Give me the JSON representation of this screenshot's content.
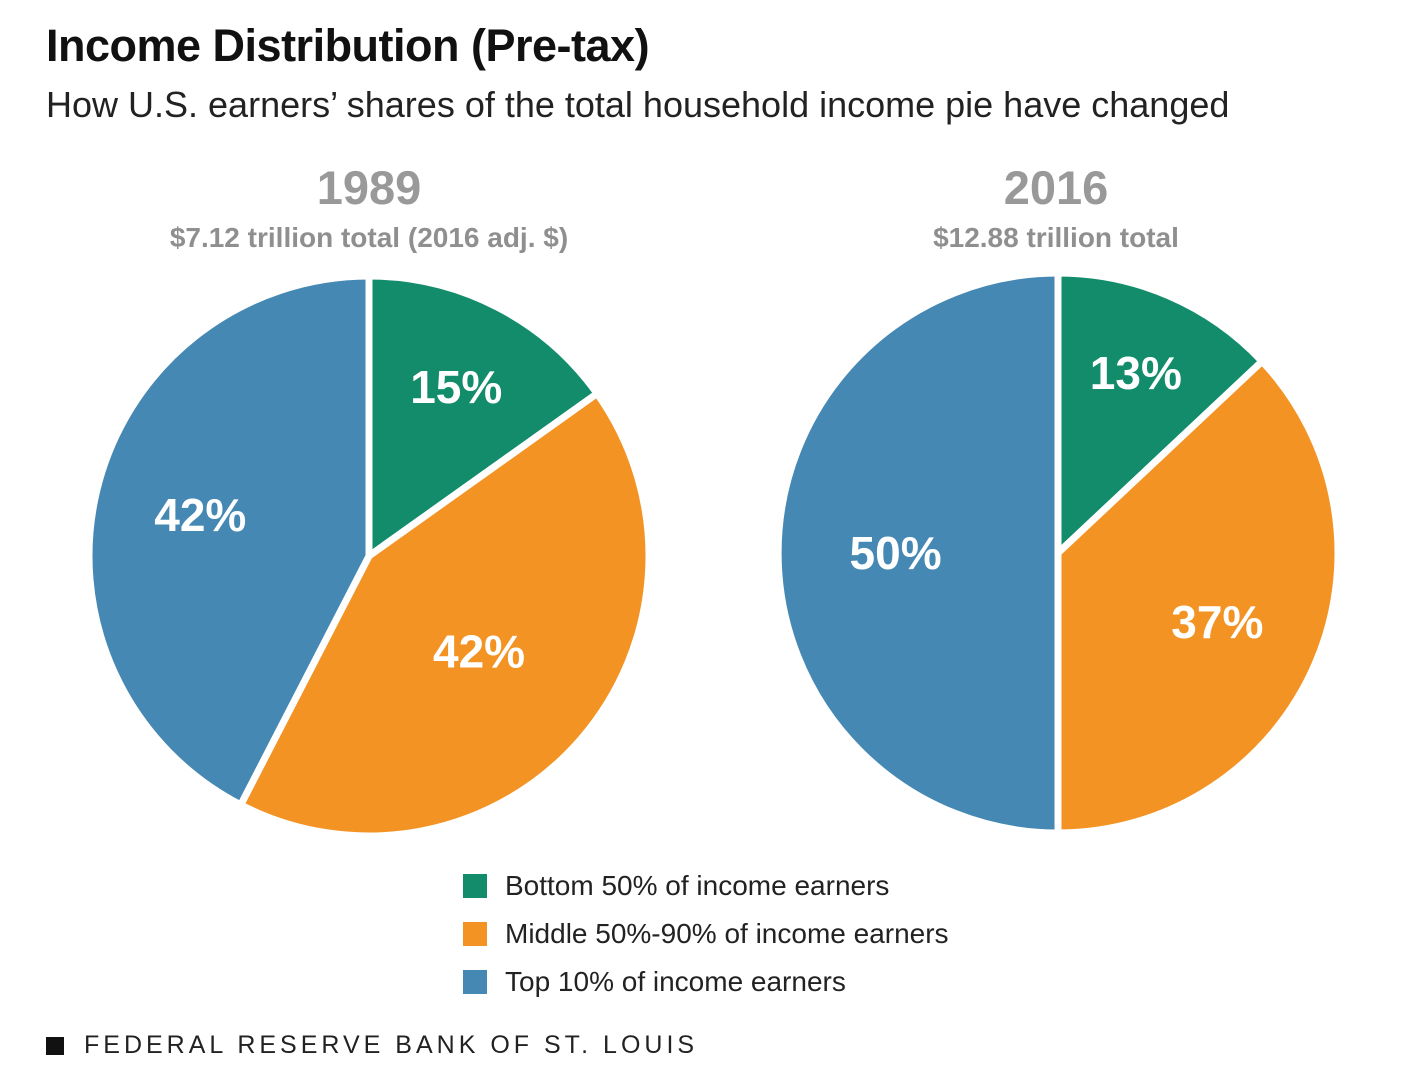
{
  "title": "Income Distribution (Pre-tax)",
  "subtitle": "How U.S. earners’ shares of the total household income pie have changed",
  "footer": "FEDERAL RESERVE BANK OF ST. LOUIS",
  "colors": {
    "bottom": "#128c6a",
    "middle": "#f39323",
    "top": "#4488b3",
    "header_gray": "#999999"
  },
  "chart_data": [
    {
      "type": "pie",
      "title": "1989",
      "subtitle": "$7.12 trillion total (2016 adj. $)",
      "labels": [
        "Bottom 50% of income earners",
        "Middle 50%-90% of income earners",
        "Top 10% of income earners"
      ],
      "values": [
        15,
        42,
        42
      ],
      "data_labels": [
        "15%",
        "42%",
        "42%"
      ]
    },
    {
      "type": "pie",
      "title": "2016",
      "subtitle": "$12.88 trillion total",
      "labels": [
        "Bottom 50% of income earners",
        "Middle 50%-90% of income earners",
        "Top 10% of income earners"
      ],
      "values": [
        13,
        37,
        50
      ],
      "data_labels": [
        "13%",
        "37%",
        "50%"
      ]
    }
  ],
  "legend": [
    {
      "label": "Bottom 50% of income earners",
      "color": "#128c6a"
    },
    {
      "label": "Middle 50%-90% of income earners",
      "color": "#f39323"
    },
    {
      "label": "Top 10% of income earners",
      "color": "#4488b3"
    }
  ]
}
